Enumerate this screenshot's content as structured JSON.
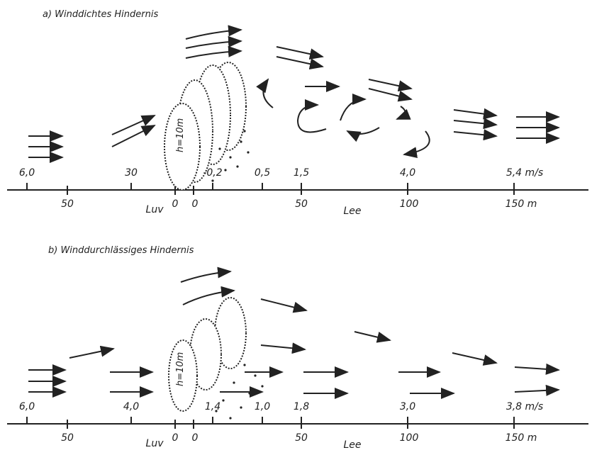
{
  "panels": [
    {
      "title": "a) Winddichtes Hindernis",
      "tree_label": "h=10m",
      "speeds": [
        "6,0",
        "30",
        "-0,2",
        "0,5",
        "1,5",
        "4,0",
        "5,4 m/s"
      ],
      "distances": [
        "50",
        "Luv",
        "0",
        "0",
        "50",
        "Lee",
        "100",
        "150 m"
      ]
    },
    {
      "title": "b) Winddurchlässiges Hindernis",
      "tree_label": "h=10m",
      "speeds": [
        "6,0",
        "4,0",
        "1,4",
        "1,0",
        "1,8",
        "3,0",
        "3,8 m/s"
      ],
      "distances": [
        "50",
        "Luv",
        "0",
        "0",
        "50",
        "Lee",
        "100",
        "150 m"
      ]
    }
  ]
}
